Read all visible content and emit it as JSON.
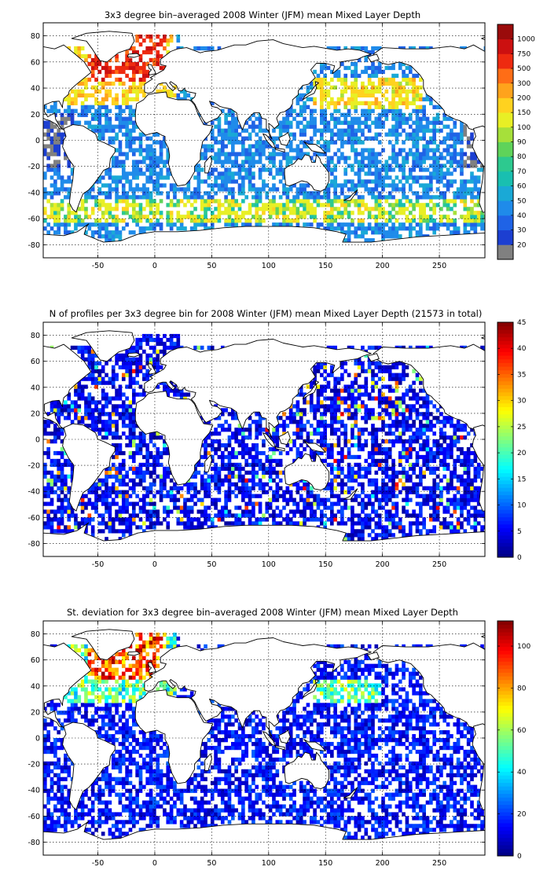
{
  "chart_data": [
    {
      "type": "heatmap",
      "title": "3x3 degree bin–averaged 2008 Winter (JFM) mean Mixed Layer Depth",
      "xticks": [
        -50,
        0,
        50,
        100,
        150,
        200,
        250
      ],
      "yticks": [
        80,
        60,
        40,
        20,
        0,
        -20,
        -40,
        -60,
        -80
      ],
      "xlim": [
        -98,
        290
      ],
      "ylim": [
        -90,
        90
      ],
      "grid": true,
      "colorbar": {
        "kind": "discrete",
        "labels": [
          "20",
          "30",
          "40",
          "50",
          "60",
          "70",
          "80",
          "90",
          "100",
          "150",
          "200",
          "300",
          "500",
          "750",
          "1000"
        ],
        "colors": [
          "#808080",
          "#1c3fd1",
          "#1f63e6",
          "#1f8bea",
          "#1aa9d6",
          "#19bfb0",
          "#2dc98f",
          "#5fd35a",
          "#a6e03a",
          "#e8ef25",
          "#ffd21f",
          "#ffa31c",
          "#ff6d16",
          "#ee2a10",
          "#cc1010",
          "#9a0b0b"
        ]
      }
    },
    {
      "type": "heatmap",
      "title": "N of profiles per 3x3 degree bin for 2008 Winter (JFM) mean Mixed Layer Depth  (21573 in total)",
      "xticks": [
        -50,
        0,
        50,
        100,
        150,
        200,
        250
      ],
      "yticks": [
        80,
        60,
        40,
        20,
        0,
        -20,
        -40,
        -60,
        -80
      ],
      "xlim": [
        -98,
        290
      ],
      "ylim": [
        -90,
        90
      ],
      "grid": true,
      "colorbar": {
        "kind": "continuous",
        "min": 0,
        "max": 45,
        "labels": [
          "0",
          "5",
          "10",
          "15",
          "20",
          "25",
          "30",
          "35",
          "40",
          "45"
        ],
        "values": [
          0,
          5,
          10,
          15,
          20,
          25,
          30,
          35,
          40,
          45
        ]
      }
    },
    {
      "type": "heatmap",
      "title": "St. deviation for 3x3 degree bin–averaged 2008 Winter (JFM) mean Mixed Layer Depth",
      "xticks": [
        -50,
        0,
        50,
        100,
        150,
        200,
        250
      ],
      "yticks": [
        80,
        60,
        40,
        20,
        0,
        -20,
        -40,
        -60,
        -80
      ],
      "xlim": [
        -98,
        290
      ],
      "ylim": [
        -90,
        90
      ],
      "grid": true,
      "colorbar": {
        "kind": "continuous",
        "min": 0,
        "max": 112,
        "labels": [
          "0",
          "20",
          "40",
          "60",
          "80",
          "100"
        ],
        "values": [
          0,
          20,
          40,
          60,
          80,
          100
        ]
      }
    }
  ]
}
